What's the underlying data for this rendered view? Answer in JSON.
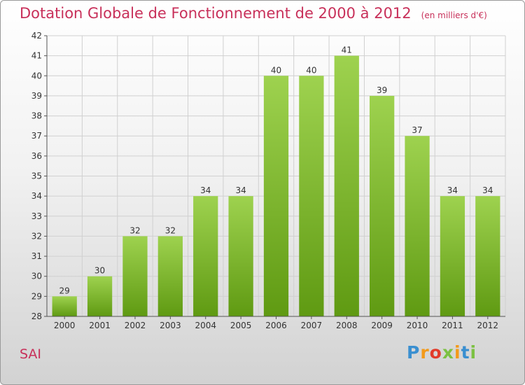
{
  "title": "Dotation Globale de Fonctionnement de 2000 à 2012",
  "unit": "(en milliers d'€)",
  "commune": "SAI",
  "logo": {
    "letters": [
      "P",
      "r",
      "o",
      "x",
      "i",
      "t",
      "i"
    ],
    "colors": [
      "#3a8fd0",
      "#f39a1a",
      "#e23b2a",
      "#7cc142",
      "#f39a1a",
      "#3a8fd0",
      "#7cc142"
    ]
  },
  "colors": {
    "bar_top": "#9ed24f",
    "bar_bottom": "#5f9a12",
    "title": "#c8305a"
  },
  "chart_data": {
    "type": "bar",
    "categories": [
      "2000",
      "2001",
      "2002",
      "2003",
      "2004",
      "2005",
      "2006",
      "2007",
      "2008",
      "2009",
      "2010",
      "2011",
      "2012"
    ],
    "values": [
      29,
      30,
      32,
      32,
      34,
      34,
      40,
      40,
      41,
      39,
      37,
      34,
      34
    ],
    "value_labels": [
      "29",
      "30",
      "32",
      "32",
      "34",
      "34",
      "40",
      "40",
      "41",
      "39",
      "37",
      "34",
      "34"
    ],
    "yticks": [
      28,
      29,
      30,
      31,
      32,
      33,
      34,
      35,
      36,
      37,
      38,
      39,
      40,
      41,
      42
    ],
    "ylim": [
      28,
      42
    ],
    "title": "Dotation Globale de Fonctionnement de 2000 à 2012",
    "xlabel": "",
    "ylabel": "",
    "grid": true
  }
}
